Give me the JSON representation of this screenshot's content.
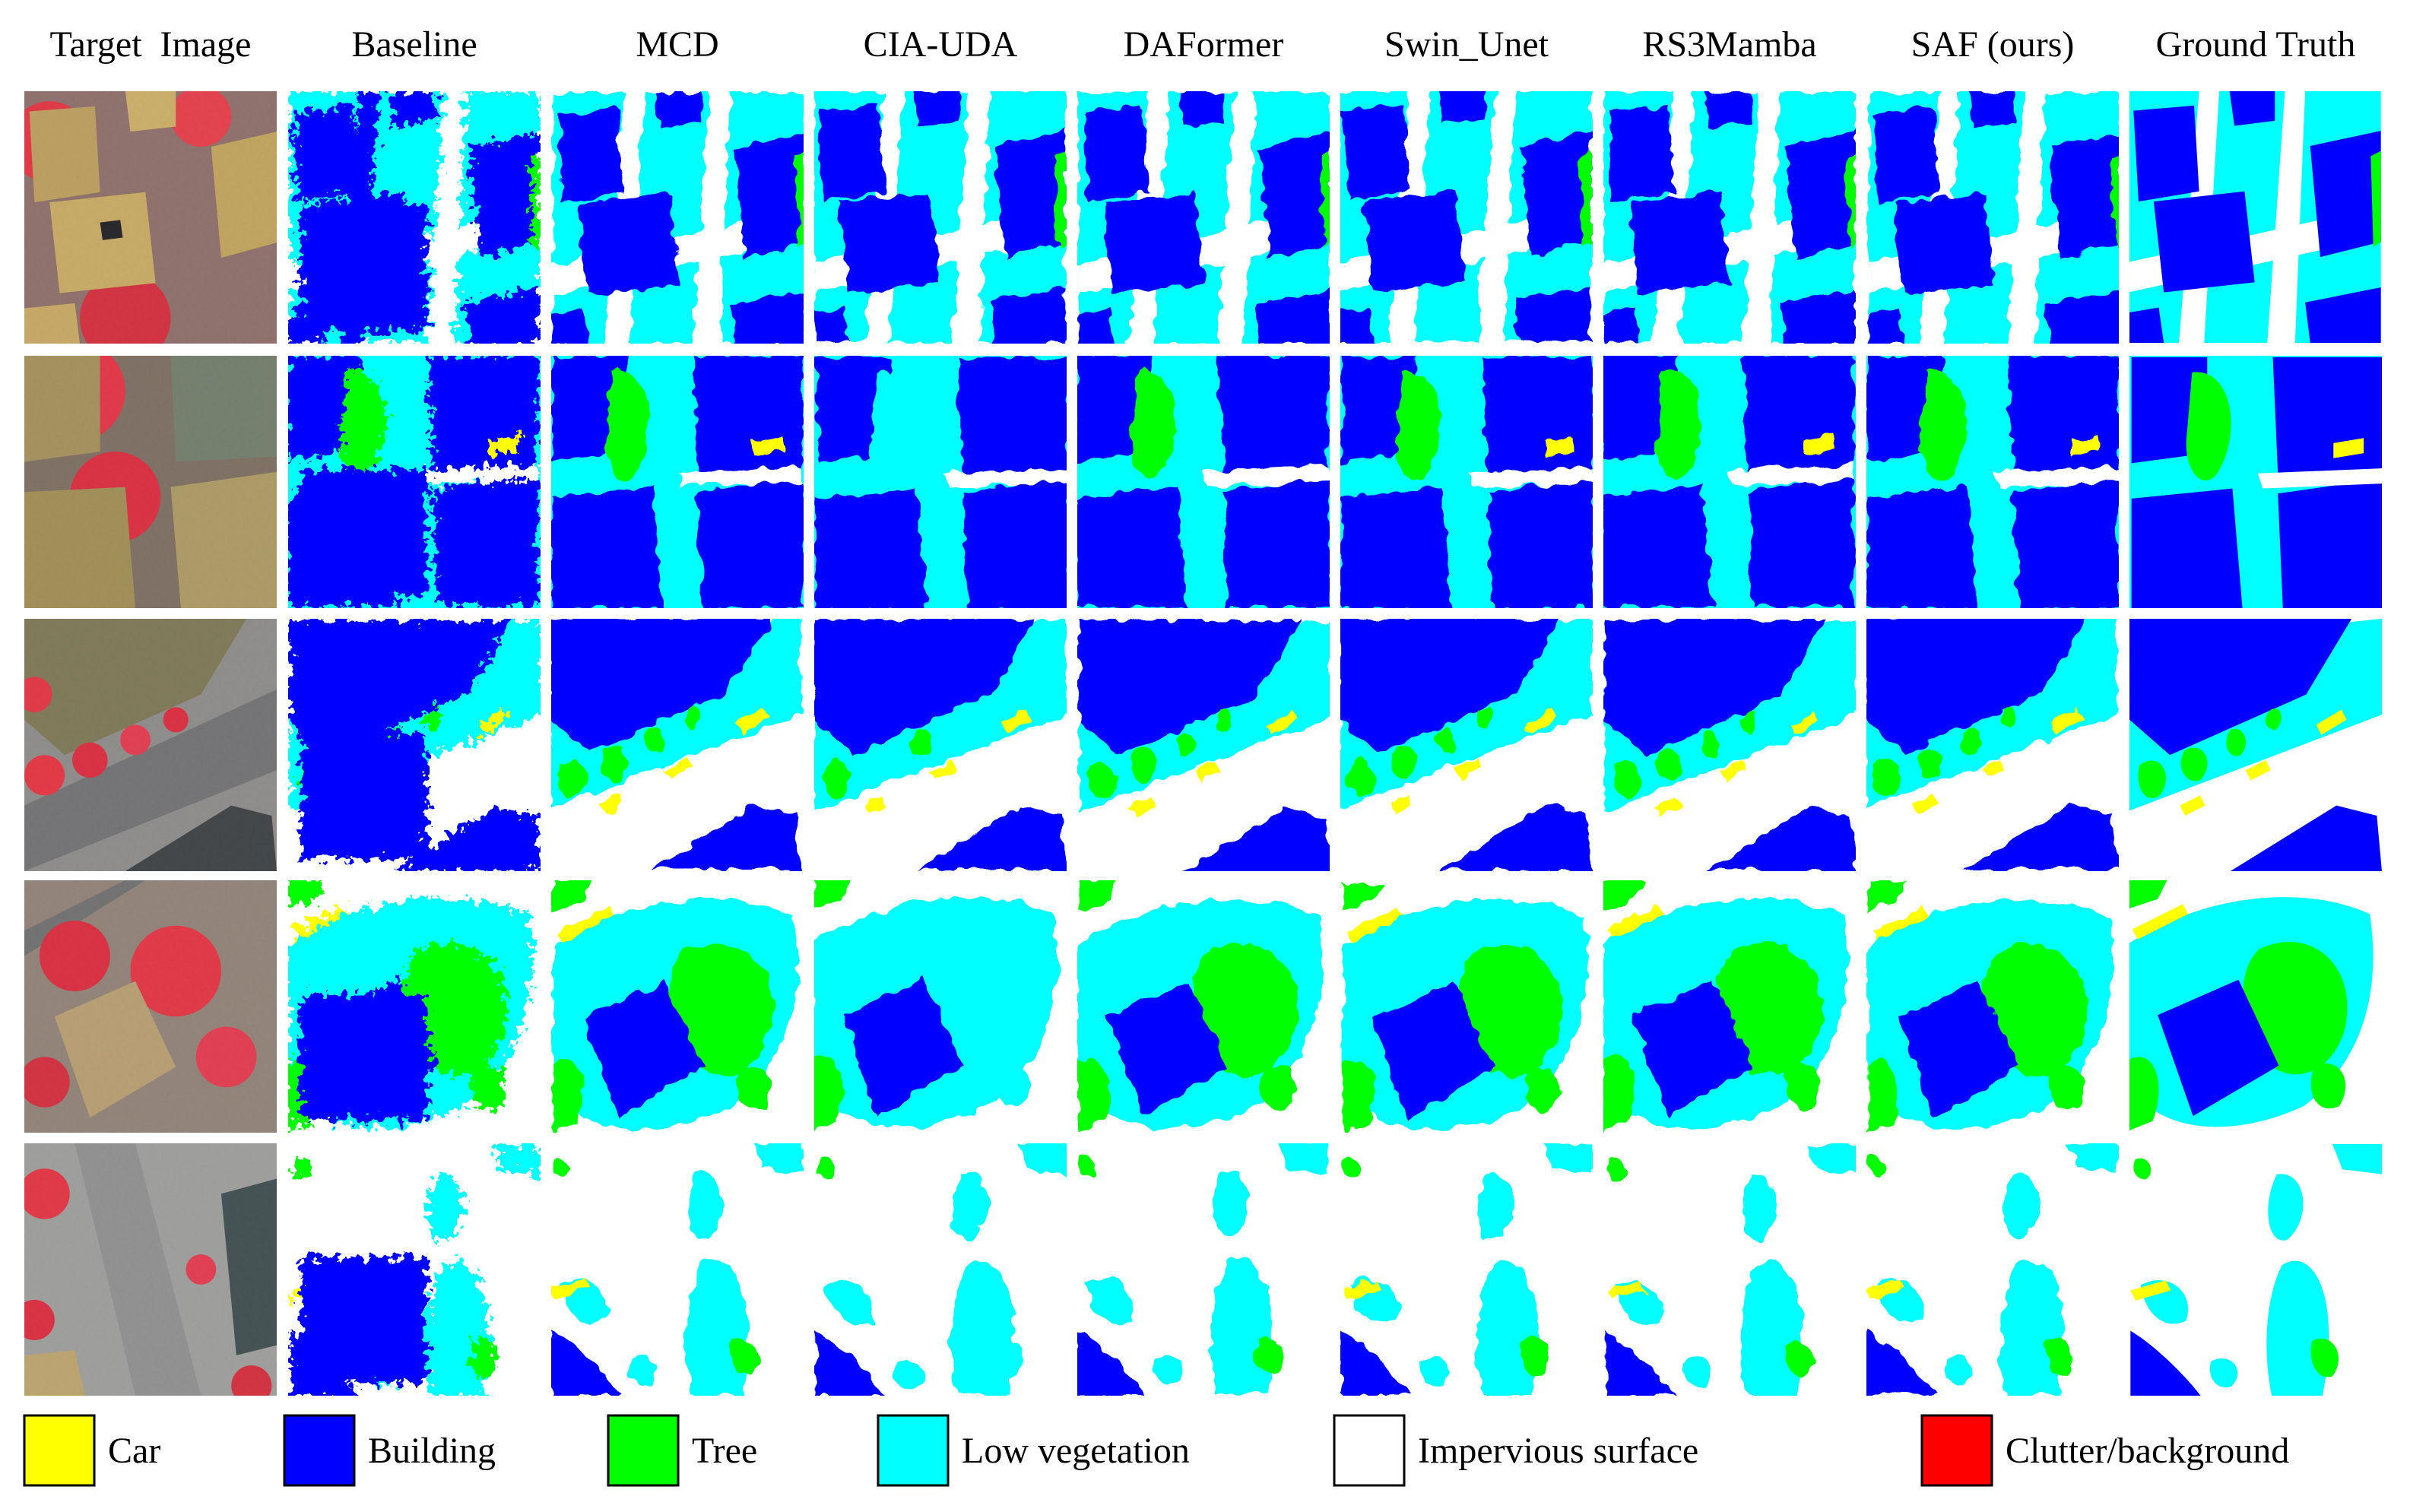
{
  "figure": {
    "columns": [
      {
        "label": "Target  Image"
      },
      {
        "label": "Baseline"
      },
      {
        "label": "MCD"
      },
      {
        "label": "CIA-UDA"
      },
      {
        "label": "DAFormer"
      },
      {
        "label": "Swin_Unet"
      },
      {
        "label": "RS3Mamba"
      },
      {
        "label": "SAF (ours)"
      },
      {
        "label": "Ground Truth"
      }
    ],
    "rows": 5,
    "legend": [
      {
        "label": "Car",
        "color": "#ffff00"
      },
      {
        "label": "Building",
        "color": "#0000ff"
      },
      {
        "label": "Tree",
        "color": "#00ff00"
      },
      {
        "label": "Low vegetation",
        "color": "#00ffff"
      },
      {
        "label": "Impervious surface",
        "color": "#ffffff"
      },
      {
        "label": "Clutter/background",
        "color": "#ff0000"
      }
    ],
    "colors": {
      "car": "#ffff00",
      "building": "#0000ff",
      "tree": "#00ff00",
      "lowveg": "#00ffff",
      "impervious": "#ffffff",
      "clutter": "#ff0000"
    }
  }
}
